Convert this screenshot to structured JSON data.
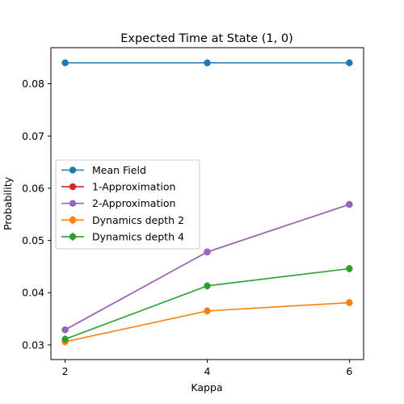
{
  "chart_data": {
    "type": "line",
    "title": "Expected Time at State (1, 0)",
    "xlabel": "Kappa",
    "ylabel": "Probability",
    "x": [
      2,
      4,
      6
    ],
    "xticks": [
      "2",
      "4",
      "6"
    ],
    "xlim": [
      1.8,
      6.2
    ],
    "ylim": [
      0.0272,
      0.0869
    ],
    "yticks": [
      "0.03",
      "0.04",
      "0.05",
      "0.06",
      "0.07",
      "0.08"
    ],
    "grid": false,
    "legend_position": "center-left",
    "series": [
      {
        "name": "Mean Field",
        "values": [
          0.084,
          0.084,
          0.084
        ],
        "color": "#1f77b4",
        "error_bars": false
      },
      {
        "name": "1-Approximation",
        "values": [
          0.0329,
          0.0478,
          0.0569
        ],
        "color": "#d62728",
        "error_bars": false
      },
      {
        "name": "2-Approximation",
        "values": [
          0.0329,
          0.0478,
          0.0569
        ],
        "color": "#9467bd",
        "error_bars": false
      },
      {
        "name": "Dynamics depth 2",
        "values": [
          0.0306,
          0.0365,
          0.0381
        ],
        "color": "#ff7f0e",
        "error_bars": true
      },
      {
        "name": "Dynamics depth 4",
        "values": [
          0.0311,
          0.0413,
          0.0446
        ],
        "color": "#2ca02c",
        "error_bars": true
      }
    ]
  }
}
